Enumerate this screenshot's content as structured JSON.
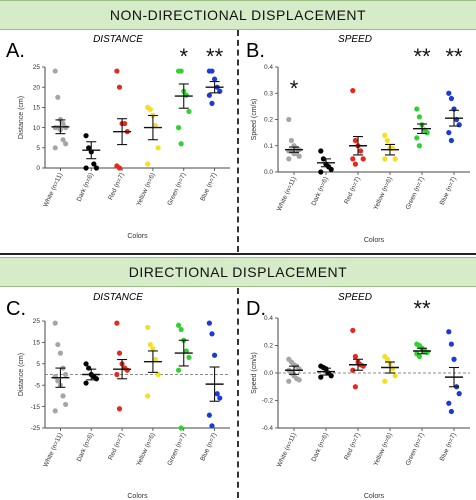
{
  "section_titles": {
    "top": "NON-DIRECTIONAL DISPLACEMENT",
    "bottom": "DIRECTIONAL DISPLACEMENT"
  },
  "chart_data": [
    {
      "panel": "A.",
      "type": "scatter",
      "title": "DISTANCE",
      "xlabel": "Colors",
      "ylabel": "Distance  (cm)",
      "ylim": [
        0,
        25
      ],
      "yticks": [
        0,
        5,
        10,
        15,
        20,
        25
      ],
      "grid": false,
      "categories": [
        "White (n=11)",
        "Dark (n=6)",
        "Red (n=7)",
        "Yellow (n=6)",
        "Green (n=7)",
        "Blue (n=7)"
      ],
      "colors": [
        "#a6a6a6",
        "#000000",
        "#e8281c",
        "#f5df1e",
        "#2fd32f",
        "#1a3ad9"
      ],
      "mean": [
        10.2,
        4.4,
        9.0,
        10.0,
        17.8,
        20.0
      ],
      "sem": [
        1.7,
        2.1,
        3.2,
        3.0,
        3.0,
        1.4
      ],
      "points": [
        [
          24,
          17.5,
          12,
          11,
          10,
          10,
          10,
          9.5,
          7,
          6,
          5
        ],
        [
          8,
          5,
          4,
          1,
          0,
          0
        ],
        [
          24,
          20,
          11,
          11,
          9,
          0.5,
          0
        ],
        [
          15,
          14.5,
          13,
          10.5,
          5,
          1
        ],
        [
          24,
          24,
          19,
          18,
          14,
          10,
          6
        ],
        [
          24,
          24,
          22,
          20,
          19,
          18,
          16
        ]
      ],
      "significance": [
        "",
        "",
        "",
        "",
        "*",
        "**"
      ]
    },
    {
      "panel": "B.",
      "type": "scatter",
      "title": "SPEED",
      "xlabel": "Colors",
      "ylabel": "Speed  (cm/s)",
      "ylim": [
        0,
        0.4
      ],
      "yticks": [
        0.0,
        0.1,
        0.2,
        0.3,
        0.4
      ],
      "grid": false,
      "categories": [
        "White (n=11)",
        "Dark (n=6)",
        "Red (n=7)",
        "Yellow (n=6)",
        "Green (n=7)",
        "Blue (n=7)"
      ],
      "colors": [
        "#a6a6a6",
        "#000000",
        "#e8281c",
        "#f5df1e",
        "#2fd32f",
        "#1a3ad9"
      ],
      "mean": [
        0.085,
        0.035,
        0.1,
        0.085,
        0.165,
        0.205
      ],
      "sem": [
        0.01,
        0.015,
        0.035,
        0.02,
        0.018,
        0.03
      ],
      "points": [
        [
          0.2,
          0.12,
          0.1,
          0.09,
          0.085,
          0.08,
          0.08,
          0.07,
          0.07,
          0.06,
          0.05
        ],
        [
          0.08,
          0.05,
          0.03,
          0.02,
          0.01,
          0.0
        ],
        [
          0.31,
          0.12,
          0.1,
          0.08,
          0.05,
          0.05,
          0.03
        ],
        [
          0.14,
          0.12,
          0.09,
          0.09,
          0.05,
          0.05
        ],
        [
          0.24,
          0.21,
          0.18,
          0.16,
          0.15,
          0.13,
          0.1
        ],
        [
          0.3,
          0.28,
          0.24,
          0.2,
          0.18,
          0.15,
          0.12
        ]
      ],
      "significance": [
        "*",
        "",
        "",
        "",
        "**",
        "**"
      ]
    },
    {
      "panel": "C.",
      "type": "scatter",
      "title": "DISTANCE",
      "xlabel": "Colors",
      "ylabel": "Distance  (cm)",
      "ylim": [
        -25,
        25
      ],
      "yticks": [
        -25,
        -15,
        -5,
        5,
        15,
        25
      ],
      "zero_line": true,
      "grid": false,
      "categories": [
        "White (n=11)",
        "Dark (n=6)",
        "Red (n=7)",
        "Yellow (n=6)",
        "Green (n=7)",
        "Blue (n=7)"
      ],
      "colors": [
        "#a6a6a6",
        "#000000",
        "#e8281c",
        "#f5df1e",
        "#2fd32f",
        "#1a3ad9"
      ],
      "mean": [
        -1.5,
        0.0,
        2.5,
        6.0,
        10.0,
        -4.5
      ],
      "sem": [
        4.5,
        2.5,
        4.5,
        5.0,
        6.0,
        8.0
      ],
      "points": [
        [
          24,
          14,
          10,
          3,
          0,
          -1,
          -3,
          -5,
          -10,
          -14,
          -17
        ],
        [
          5,
          3,
          0,
          -1,
          -2,
          -4
        ],
        [
          24,
          10,
          5,
          3,
          2,
          0,
          -16
        ],
        [
          22,
          14,
          12,
          7,
          0,
          -10
        ],
        [
          23,
          21,
          16,
          11,
          8,
          2,
          -25
        ],
        [
          24,
          19,
          9,
          -9,
          -11,
          -19,
          -24
        ]
      ],
      "significance": [
        "",
        "",
        "",
        "",
        "",
        ""
      ]
    },
    {
      "panel": "D.",
      "type": "scatter",
      "title": "SPEED",
      "xlabel": "Colors",
      "ylabel": "Speed  (cm/s)",
      "ylim": [
        -0.4,
        0.4
      ],
      "yticks": [
        -0.4,
        -0.2,
        0.0,
        0.2,
        0.4
      ],
      "zero_line": true,
      "grid": false,
      "categories": [
        "White (n=11)",
        "Dark (n=6)",
        "Red (n=7)",
        "Yellow (n=6)",
        "Green (n=7)",
        "Blue (n=7)"
      ],
      "colors": [
        "#a6a6a6",
        "#000000",
        "#e8281c",
        "#f5df1e",
        "#2fd32f",
        "#1a3ad9"
      ],
      "mean": [
        0.02,
        0.01,
        0.06,
        0.04,
        0.16,
        -0.03
      ],
      "sem": [
        0.03,
        0.025,
        0.04,
        0.04,
        0.02,
        0.07
      ],
      "points": [
        [
          0.1,
          0.08,
          0.06,
          0.05,
          0.03,
          0.02,
          0.0,
          -0.02,
          -0.04,
          -0.05,
          -0.06
        ],
        [
          0.05,
          0.04,
          0.03,
          0.0,
          -0.02,
          -0.03
        ],
        [
          0.31,
          0.12,
          0.08,
          0.06,
          0.05,
          0.02,
          -0.1
        ],
        [
          0.12,
          0.1,
          0.07,
          0.03,
          -0.02,
          -0.06
        ],
        [
          0.21,
          0.2,
          0.18,
          0.16,
          0.15,
          0.14,
          0.12
        ],
        [
          0.3,
          0.21,
          0.1,
          -0.1,
          -0.15,
          -0.22,
          -0.28
        ]
      ],
      "significance": [
        "",
        "",
        "",
        "",
        "**",
        ""
      ]
    }
  ]
}
